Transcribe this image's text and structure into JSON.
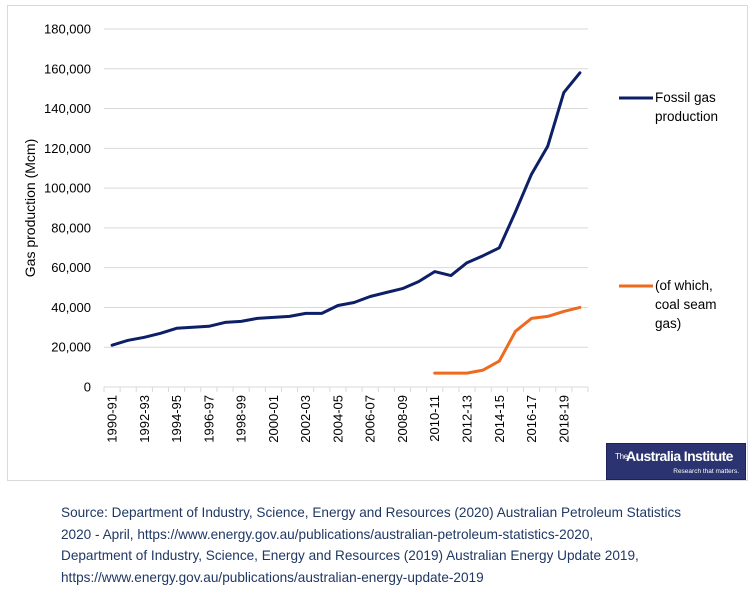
{
  "chart_data": {
    "type": "line",
    "title": "",
    "xlabel": "",
    "ylabel": "Gas production (Mcm)",
    "ylim": [
      0,
      180000
    ],
    "y_ticks": [
      0,
      20000,
      40000,
      60000,
      80000,
      100000,
      120000,
      140000,
      160000,
      180000
    ],
    "y_tick_labels": [
      "0",
      "20,000",
      "40,000",
      "60,000",
      "80,000",
      "100,000",
      "120,000",
      "140,000",
      "160,000",
      "180,000"
    ],
    "grid": true,
    "legend_position": "right",
    "categories": [
      "1990-91",
      "1991-92",
      "1992-93",
      "1993-94",
      "1994-95",
      "1995-96",
      "1996-97",
      "1997-98",
      "1998-99",
      "1999-00",
      "2000-01",
      "2001-02",
      "2002-03",
      "2003-04",
      "2004-05",
      "2005-06",
      "2006-07",
      "2007-08",
      "2008-09",
      "2009-10",
      "2010-11",
      "2011-12",
      "2012-13",
      "2013-14",
      "2014-15",
      "2015-16",
      "2016-17",
      "2017-18",
      "2018-19",
      "2019-20"
    ],
    "x_tick_labels_shown": [
      "1990-91",
      "1992-93",
      "1994-95",
      "1996-97",
      "1998-99",
      "2000-01",
      "2002-03",
      "2004-05",
      "2006-07",
      "2008-09",
      "2010-11",
      "2012-13",
      "2014-15",
      "2016-17",
      "2018-19"
    ],
    "series": [
      {
        "name": "Fossil gas production",
        "color": "#0d1f66",
        "values": [
          21000,
          23500,
          25000,
          27000,
          29500,
          30000,
          30500,
          32500,
          33000,
          34500,
          35000,
          35500,
          37000,
          37000,
          41000,
          42500,
          45500,
          47500,
          49500,
          53000,
          58000,
          56000,
          62500,
          66000,
          70000,
          88000,
          107000,
          121000,
          148000,
          158000
        ]
      },
      {
        "name": "(of which, coal seam gas)",
        "color": "#ed6a1f",
        "values": [
          null,
          null,
          null,
          null,
          null,
          null,
          null,
          null,
          null,
          null,
          null,
          null,
          null,
          null,
          null,
          null,
          null,
          null,
          null,
          null,
          7000,
          7000,
          7000,
          8500,
          13000,
          28000,
          34500,
          35500,
          38000,
          40000
        ]
      }
    ],
    "legend": [
      {
        "lines": [
          "Fossil gas",
          "production"
        ],
        "series": 0
      },
      {
        "lines": [
          "(of which,",
          "coal seam",
          "gas)"
        ],
        "series": 1
      }
    ]
  },
  "logo": {
    "prefix": "The",
    "name": "Australia Institute",
    "tagline": "Research that matters.",
    "background": "#2b3370"
  },
  "source": {
    "lines": [
      "Source: Department of Industry, Science, Energy and Resources (2020) Australian Petroleum Statistics",
      "2020 - April, https://www.energy.gov.au/publications/australian-petroleum-statistics-2020,",
      "Department of Industry, Science, Energy and Resources (2019) Australian Energy Update 2019,",
      "https://www.energy.gov.au/publications/australian-energy-update-2019"
    ],
    "color": "#1f3864"
  }
}
